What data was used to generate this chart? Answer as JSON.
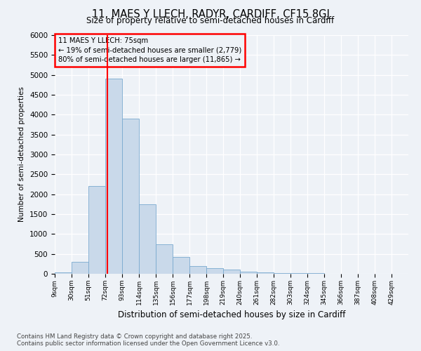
{
  "title": "11, MAES Y LLECH, RADYR, CARDIFF, CF15 8GJ",
  "subtitle": "Size of property relative to semi-detached houses in Cardiff",
  "xlabel": "Distribution of semi-detached houses by size in Cardiff",
  "ylabel": "Number of semi-detached properties",
  "bar_color": "#c9d9ea",
  "bar_edge_color": "#7aaacf",
  "annotation_line1": "11 MAES Y LLECH: 75sqm",
  "annotation_line2": "← 19% of semi-detached houses are smaller (2,779)",
  "annotation_line3": "80% of semi-detached houses are larger (11,865) →",
  "red_line_x": 75,
  "categories": [
    "9sqm",
    "30sqm",
    "51sqm",
    "72sqm",
    "93sqm",
    "114sqm",
    "135sqm",
    "156sqm",
    "177sqm",
    "198sqm",
    "219sqm",
    "240sqm",
    "261sqm",
    "282sqm",
    "303sqm",
    "324sqm",
    "345sqm",
    "366sqm",
    "387sqm",
    "408sqm",
    "429sqm"
  ],
  "bin_edges": [
    9,
    30,
    51,
    72,
    93,
    114,
    135,
    156,
    177,
    198,
    219,
    240,
    261,
    282,
    303,
    324,
    345,
    366,
    387,
    408,
    429,
    450
  ],
  "values": [
    30,
    300,
    2200,
    4900,
    3900,
    1750,
    750,
    430,
    200,
    150,
    100,
    60,
    40,
    25,
    15,
    10,
    5,
    5,
    3,
    2,
    0
  ],
  "ylim": [
    0,
    6000
  ],
  "yticks": [
    0,
    500,
    1000,
    1500,
    2000,
    2500,
    3000,
    3500,
    4000,
    4500,
    5000,
    5500,
    6000
  ],
  "footer_line1": "Contains HM Land Registry data © Crown copyright and database right 2025.",
  "footer_line2": "Contains public sector information licensed under the Open Government Licence v3.0.",
  "background_color": "#eef2f7"
}
